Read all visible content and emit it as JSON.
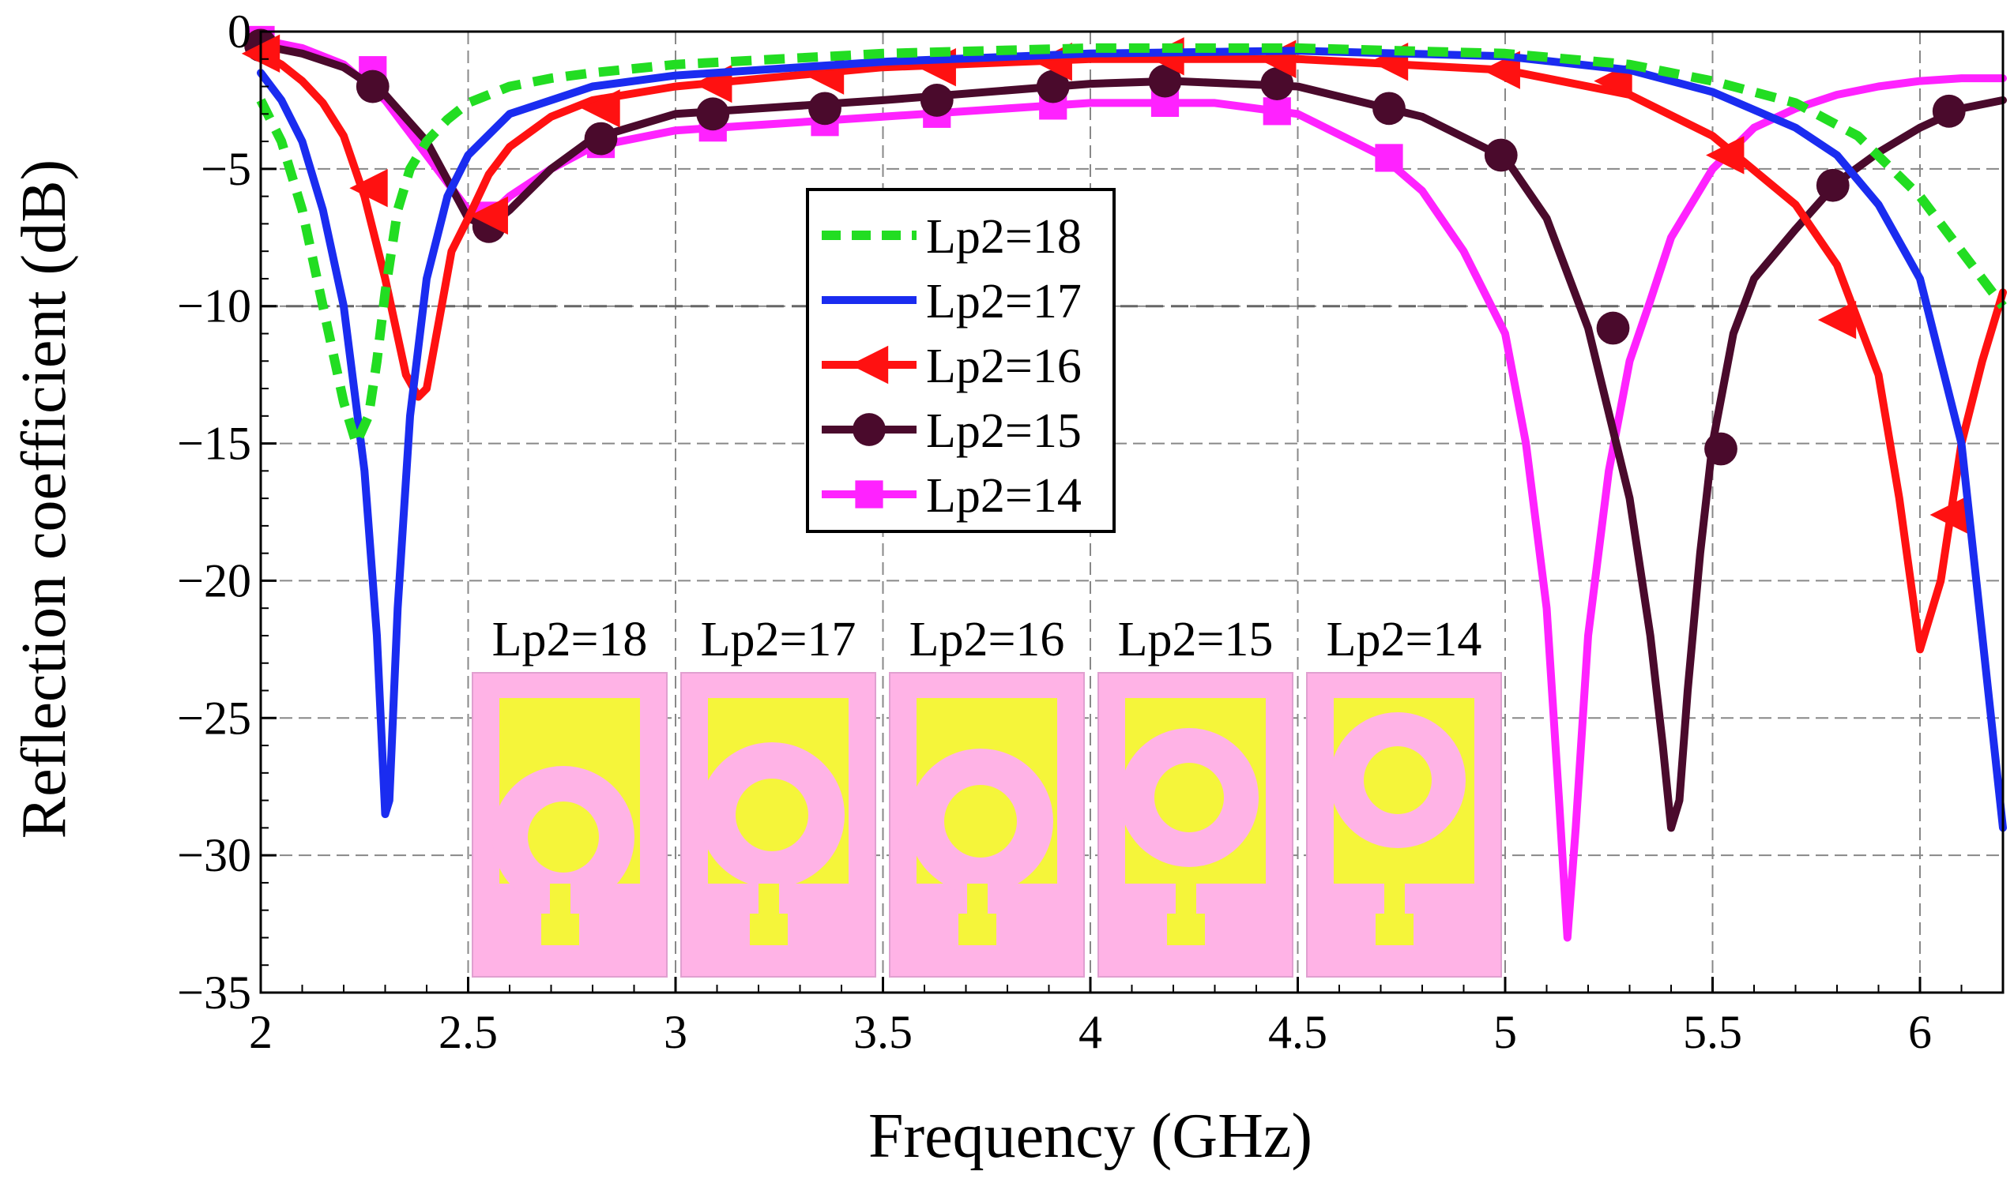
{
  "chart_data": {
    "type": "line",
    "title": "",
    "xlabel": "Frequency (GHz)",
    "ylabel": "Reflection coefficient (dB)",
    "xlim": [
      2,
      6.2
    ],
    "ylim": [
      -35,
      0
    ],
    "x_ticks": [
      2,
      2.5,
      3,
      3.5,
      4,
      4.5,
      5,
      5.5,
      6
    ],
    "x_tick_labels": [
      "2",
      "2.5",
      "3",
      "3.5",
      "4",
      "4.5",
      "5",
      "5.5",
      "6"
    ],
    "y_ticks": [
      0,
      -5,
      -10,
      -15,
      -20,
      -25,
      -30,
      -35
    ],
    "y_tick_labels": [
      "0",
      "−5",
      "−10",
      "−15",
      "−20",
      "−25",
      "−30",
      "−35"
    ],
    "grid": true,
    "reference_line_y": -10,
    "legend_position": "center",
    "series": [
      {
        "name": "Lp2=18",
        "color": "#22dd22",
        "style": "dashed",
        "marker": "none",
        "x": [
          2.0,
          2.05,
          2.1,
          2.15,
          2.2,
          2.23,
          2.26,
          2.28,
          2.3,
          2.33,
          2.36,
          2.4,
          2.45,
          2.5,
          2.6,
          2.7,
          2.8,
          3.0,
          3.5,
          4.0,
          4.5,
          5.0,
          5.3,
          5.5,
          5.7,
          5.85,
          6.0,
          6.1,
          6.2
        ],
        "y": [
          -2.5,
          -4,
          -6.5,
          -10,
          -13.5,
          -15,
          -14,
          -12,
          -9.5,
          -6.5,
          -5,
          -4,
          -3.2,
          -2.6,
          -2,
          -1.7,
          -1.5,
          -1.2,
          -0.8,
          -0.6,
          -0.6,
          -0.8,
          -1.2,
          -1.8,
          -2.6,
          -3.8,
          -6,
          -8,
          -10
        ]
      },
      {
        "name": "Lp2=17",
        "color": "#1a2cf0",
        "style": "solid",
        "marker": "none",
        "x": [
          2.0,
          2.05,
          2.1,
          2.15,
          2.2,
          2.25,
          2.28,
          2.3,
          2.31,
          2.33,
          2.36,
          2.4,
          2.45,
          2.5,
          2.6,
          2.8,
          3.0,
          3.5,
          4.0,
          4.5,
          5.0,
          5.3,
          5.5,
          5.7,
          5.8,
          5.9,
          6.0,
          6.1,
          6.15,
          6.2
        ],
        "y": [
          -1.5,
          -2.5,
          -4,
          -6.5,
          -10,
          -16,
          -22,
          -28.5,
          -28,
          -21,
          -14,
          -9,
          -6,
          -4.5,
          -3,
          -2,
          -1.6,
          -1.1,
          -0.8,
          -0.7,
          -0.9,
          -1.4,
          -2.2,
          -3.5,
          -4.5,
          -6.3,
          -9,
          -15,
          -22,
          -29
        ]
      },
      {
        "name": "Lp2=16",
        "color": "#ff1111",
        "style": "solid",
        "marker": "triangle-left",
        "x": [
          2.0,
          2.05,
          2.1,
          2.15,
          2.2,
          2.25,
          2.3,
          2.35,
          2.38,
          2.4,
          2.43,
          2.46,
          2.5,
          2.55,
          2.6,
          2.7,
          2.8,
          3.0,
          3.5,
          4.0,
          4.5,
          5.0,
          5.3,
          5.5,
          5.7,
          5.8,
          5.9,
          5.95,
          6.0,
          6.05,
          6.1,
          6.15,
          6.2
        ],
        "y": [
          -0.8,
          -1.2,
          -1.8,
          -2.6,
          -3.8,
          -6,
          -9,
          -12.5,
          -13.3,
          -13,
          -10.5,
          -8,
          -6.8,
          -5.2,
          -4.2,
          -3.1,
          -2.5,
          -2,
          -1.3,
          -1.0,
          -1.0,
          -1.4,
          -2.3,
          -3.8,
          -6.3,
          -8.5,
          -12.5,
          -17,
          -22.5,
          -20,
          -15,
          -12,
          -9.5
        ],
        "markers_x": [
          2.0,
          2.26,
          2.55,
          2.82,
          3.09,
          3.36,
          3.63,
          3.91,
          4.18,
          4.45,
          4.72,
          4.99,
          5.26,
          5.53,
          5.8,
          6.07
        ],
        "markers_y": [
          -0.8,
          -5.7,
          -6.7,
          -2.8,
          -1.9,
          -1.6,
          -1.3,
          -1.1,
          -0.9,
          -1.0,
          -1.1,
          -1.4,
          -1.8,
          -4.5,
          -10.5,
          -17.6
        ]
      },
      {
        "name": "Lp2=15",
        "color": "#4a0a2c",
        "style": "solid",
        "marker": "circle",
        "x": [
          2.0,
          2.1,
          2.2,
          2.3,
          2.4,
          2.5,
          2.55,
          2.6,
          2.7,
          2.8,
          3.0,
          3.5,
          4.0,
          4.2,
          4.5,
          4.8,
          5.0,
          5.1,
          5.2,
          5.3,
          5.35,
          5.38,
          5.4,
          5.42,
          5.44,
          5.47,
          5.5,
          5.55,
          5.6,
          5.7,
          5.8,
          5.9,
          6.0,
          6.1,
          6.2
        ],
        "y": [
          -0.5,
          -0.8,
          -1.3,
          -2.3,
          -4,
          -6.8,
          -7.1,
          -6.5,
          -5,
          -3.9,
          -3,
          -2.5,
          -1.9,
          -1.8,
          -2.0,
          -3.1,
          -4.6,
          -6.8,
          -10.8,
          -17,
          -22,
          -26,
          -29,
          -28,
          -24,
          -19,
          -15,
          -11,
          -9,
          -7.2,
          -5.5,
          -4.4,
          -3.5,
          -2.8,
          -2.5
        ],
        "markers_x": [
          2.0,
          2.27,
          2.55,
          2.82,
          3.09,
          3.36,
          3.63,
          3.91,
          4.18,
          4.45,
          4.72,
          4.99,
          5.26,
          5.52,
          5.79,
          6.07
        ],
        "markers_y": [
          -0.5,
          -2.0,
          -7.1,
          -3.9,
          -3.0,
          -2.8,
          -2.5,
          -2.0,
          -1.8,
          -1.9,
          -2.8,
          -4.5,
          -10.8,
          -15.2,
          -5.6,
          -2.9
        ]
      },
      {
        "name": "Lp2=14",
        "color": "#ff22ff",
        "style": "solid",
        "marker": "square",
        "x": [
          2.0,
          2.1,
          2.2,
          2.3,
          2.4,
          2.5,
          2.55,
          2.6,
          2.7,
          2.8,
          3.0,
          3.5,
          4.0,
          4.3,
          4.5,
          4.7,
          4.8,
          4.9,
          5.0,
          5.05,
          5.1,
          5.13,
          5.15,
          5.17,
          5.2,
          5.25,
          5.3,
          5.35,
          5.4,
          5.5,
          5.6,
          5.7,
          5.8,
          5.9,
          6.0,
          6.1,
          6.2
        ],
        "y": [
          -0.3,
          -0.6,
          -1.2,
          -2.5,
          -4.5,
          -6.5,
          -6.7,
          -6,
          -5,
          -4.2,
          -3.6,
          -3.1,
          -2.6,
          -2.6,
          -3.0,
          -4.5,
          -5.8,
          -8,
          -11,
          -15,
          -21,
          -28,
          -33,
          -29,
          -22,
          -16,
          -12,
          -9.8,
          -7.5,
          -5,
          -3.5,
          -2.8,
          -2.3,
          -2,
          -1.8,
          -1.7,
          -1.7
        ],
        "markers_x": [
          2.0,
          2.27,
          2.55,
          2.82,
          3.09,
          3.36,
          3.63,
          3.91,
          4.18,
          4.45,
          4.72
        ],
        "markers_y": [
          -0.3,
          -1.4,
          -6.7,
          -4.1,
          -3.5,
          -3.3,
          -3.0,
          -2.7,
          -2.6,
          -2.9,
          -4.6
        ]
      }
    ],
    "inset": {
      "labels": [
        "Lp2=18",
        "Lp2=17",
        "Lp2=16",
        "Lp2=15",
        "Lp2=14"
      ],
      "colors": {
        "substrate": "#ffb3e6",
        "patch": "#f5f53a"
      }
    }
  }
}
